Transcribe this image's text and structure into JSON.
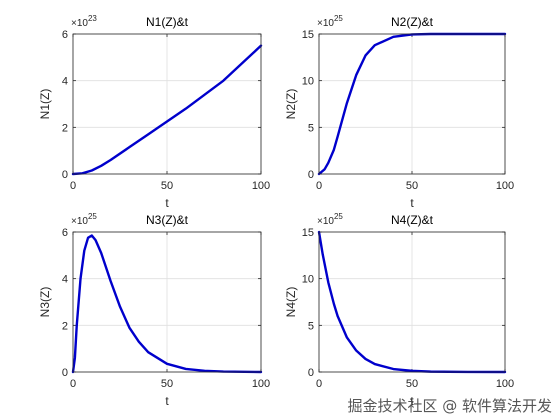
{
  "chart_data": [
    {
      "type": "line",
      "title": "N1(Z)&t",
      "xlabel": "t",
      "ylabel": "N1(Z)",
      "xlim": [
        0,
        100
      ],
      "ylim": [
        0,
        6
      ],
      "xticks": [
        "0",
        "50",
        "100"
      ],
      "yticks": [
        "0",
        "2",
        "4",
        "6"
      ],
      "y_exponent": "23",
      "grid": true,
      "color": "#0000cc",
      "x": [
        0,
        5,
        10,
        15,
        20,
        30,
        40,
        50,
        60,
        70,
        80,
        90,
        100
      ],
      "y": [
        0,
        0.03,
        0.15,
        0.35,
        0.6,
        1.15,
        1.7,
        2.25,
        2.8,
        3.4,
        4.0,
        4.75,
        5.5
      ]
    },
    {
      "type": "line",
      "title": "N2(Z)&t",
      "xlabel": "t",
      "ylabel": "N2(Z)",
      "xlim": [
        0,
        100
      ],
      "ylim": [
        0,
        15
      ],
      "xticks": [
        "0",
        "50",
        "100"
      ],
      "yticks": [
        "0",
        "5",
        "10",
        "15"
      ],
      "y_exponent": "25",
      "grid": true,
      "color": "#0000cc",
      "x": [
        0,
        3,
        5,
        8,
        10,
        15,
        20,
        25,
        30,
        40,
        50,
        60,
        70,
        80,
        100
      ],
      "y": [
        0,
        0.5,
        1.2,
        2.6,
        4.0,
        7.6,
        10.6,
        12.7,
        13.8,
        14.7,
        14.95,
        15.0,
        15.0,
        15.0,
        15.0
      ]
    },
    {
      "type": "line",
      "title": "N3(Z)&t",
      "xlabel": "t",
      "ylabel": "N3(Z)",
      "xlim": [
        0,
        100
      ],
      "ylim": [
        0,
        6
      ],
      "xticks": [
        "0",
        "50",
        "100"
      ],
      "yticks": [
        "0",
        "2",
        "4",
        "6"
      ],
      "y_exponent": "25",
      "grid": true,
      "color": "#0000cc",
      "x": [
        0,
        1,
        2,
        4,
        6,
        8,
        10,
        12,
        15,
        20,
        25,
        30,
        35,
        40,
        50,
        60,
        70,
        80,
        100
      ],
      "y": [
        0,
        0.6,
        2.0,
        4.0,
        5.2,
        5.75,
        5.85,
        5.65,
        5.1,
        3.9,
        2.8,
        1.9,
        1.3,
        0.85,
        0.35,
        0.13,
        0.05,
        0.02,
        0
      ]
    },
    {
      "type": "line",
      "title": "N4(Z)&t",
      "xlabel": "t",
      "ylabel": "N4(Z)",
      "xlim": [
        0,
        100
      ],
      "ylim": [
        0,
        15
      ],
      "xticks": [
        "0",
        "50",
        "100"
      ],
      "yticks": [
        "0",
        "5",
        "10",
        "15"
      ],
      "y_exponent": "25",
      "grid": true,
      "color": "#0000cc",
      "x": [
        0,
        2,
        5,
        8,
        10,
        15,
        20,
        25,
        30,
        40,
        50,
        60,
        80,
        100
      ],
      "y": [
        15.0,
        12.6,
        9.6,
        7.3,
        6.0,
        3.7,
        2.3,
        1.4,
        0.85,
        0.32,
        0.12,
        0.04,
        0.01,
        0
      ]
    }
  ],
  "watermark": "掘金技术社区 @ 软件算法开发"
}
